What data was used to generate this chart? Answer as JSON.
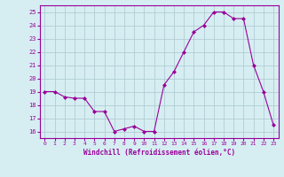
{
  "x": [
    0,
    1,
    2,
    3,
    4,
    5,
    6,
    7,
    8,
    9,
    10,
    11,
    12,
    13,
    14,
    15,
    16,
    17,
    18,
    19,
    20,
    21,
    22,
    23
  ],
  "y": [
    19.0,
    19.0,
    18.6,
    18.5,
    18.5,
    17.5,
    17.5,
    16.0,
    16.2,
    16.4,
    16.0,
    16.0,
    19.5,
    20.5,
    22.0,
    23.5,
    24.0,
    25.0,
    25.0,
    24.5,
    24.5,
    21.0,
    19.0,
    16.5
  ],
  "xlim": [
    -0.5,
    23.5
  ],
  "ylim": [
    15.5,
    25.5
  ],
  "yticks": [
    16,
    17,
    18,
    19,
    20,
    21,
    22,
    23,
    24,
    25
  ],
  "xtick_labels": [
    "0",
    "1",
    "2",
    "3",
    "4",
    "5",
    "6",
    "7",
    "8",
    "9",
    "10",
    "11",
    "12",
    "13",
    "14",
    "15",
    "16",
    "17",
    "18",
    "19",
    "20",
    "21",
    "22",
    "23"
  ],
  "xlabel": "Windchill (Refroidissement éolien,°C)",
  "line_color": "#990099",
  "marker_color": "#990099",
  "bg_color": "#d6eef2",
  "grid_color": "#b0cdd4",
  "tick_label_color": "#990099",
  "axis_label_color": "#990099"
}
